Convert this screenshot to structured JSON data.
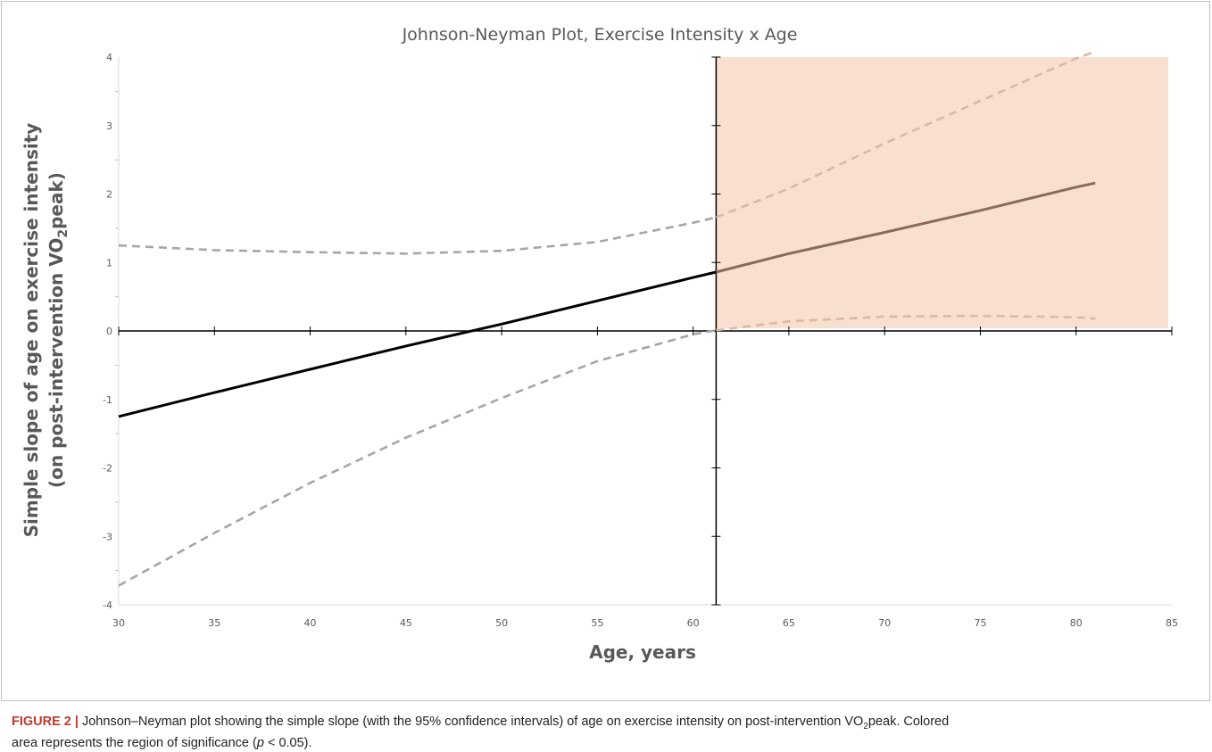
{
  "chart_data": {
    "type": "line",
    "title": "Johnson-Neyman Plot, Exercise Intensity x Age",
    "xlabel": "Age, years",
    "ylabel_line1": "Simple slope of age on exercise intensity",
    "ylabel_line2": "(on post-intervention VO",
    "ylabel_sub": "2",
    "ylabel_line2_end": "peak)",
    "xlim": [
      30,
      85
    ],
    "ylim": [
      -4,
      4
    ],
    "x_ticks": [
      30,
      35,
      40,
      45,
      50,
      55,
      60,
      65,
      70,
      75,
      80,
      85
    ],
    "y_ticks": [
      -4,
      -3,
      -2,
      -1,
      0,
      1,
      2,
      3,
      4
    ],
    "significance_region": {
      "x_start": 61.2,
      "x_end": 85,
      "y_start": 0,
      "y_end": 4,
      "color": "#f9dfcf"
    },
    "vertical_line_x": 61.2,
    "series": [
      {
        "role": "slope",
        "style": "solid",
        "x": [
          30,
          35,
          40,
          45,
          50,
          55,
          60,
          61.2,
          65,
          70,
          75,
          80,
          81
        ],
        "y": [
          -1.25,
          -0.9,
          -0.56,
          -0.22,
          0.1,
          0.44,
          0.78,
          0.86,
          1.13,
          1.44,
          1.76,
          2.1,
          2.16
        ]
      },
      {
        "role": "upper-ci",
        "style": "dashed",
        "x": [
          30,
          35,
          40,
          45,
          50,
          55,
          60,
          61.2,
          65,
          70,
          75,
          80,
          81
        ],
        "y": [
          1.25,
          1.18,
          1.15,
          1.13,
          1.17,
          1.3,
          1.58,
          1.66,
          2.08,
          2.74,
          3.36,
          3.98,
          4.08
        ]
      },
      {
        "role": "lower-ci",
        "style": "dashed",
        "x": [
          30,
          35,
          40,
          45,
          50,
          55,
          60,
          61.2,
          65,
          70,
          75,
          80,
          81
        ],
        "y": [
          -3.72,
          -2.95,
          -2.22,
          -1.56,
          -0.98,
          -0.44,
          -0.05,
          0.01,
          0.14,
          0.21,
          0.22,
          0.2,
          0.18
        ]
      }
    ],
    "colors": {
      "slope_outside": "#000000",
      "slope_inside": "#8b6a5c",
      "ci_outside": "#a6a6a6",
      "ci_inside": "#d9b9a8",
      "axis": "#000000",
      "ticks": "#595959"
    }
  },
  "caption": {
    "label": "FIGURE 2 |",
    "text_a": " Johnson–Neyman plot showing the simple slope (with the 95% confidence intervals) of age on exercise intensity on post-intervention VO",
    "sub": "2",
    "text_b": "peak. Colored",
    "line2_a": "area represents the region of significance (",
    "p_symbol": "p",
    "line2_b": " < 0.05)."
  }
}
